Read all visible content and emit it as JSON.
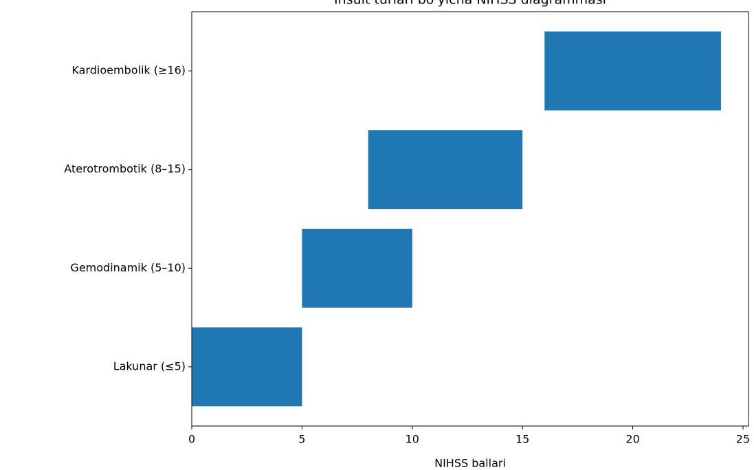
{
  "chart_data": {
    "type": "floating_barh",
    "title": "Insult turlari bo'yicha NIHSS diagrammasi",
    "xlabel": "NIHSS ballari",
    "categories": [
      "Lakunar (≤5)",
      "Gemodinamik (5–10)",
      "Aterotrombotik (8–15)",
      "Kardioembolik (≥16)"
    ],
    "starts": [
      0,
      5,
      8,
      16
    ],
    "ends": [
      5,
      10,
      15,
      24
    ],
    "color": "#1f77b4",
    "xlim": [
      0,
      25.25
    ],
    "xticks": [
      0,
      5,
      10,
      15,
      20,
      25
    ],
    "grid": false
  }
}
